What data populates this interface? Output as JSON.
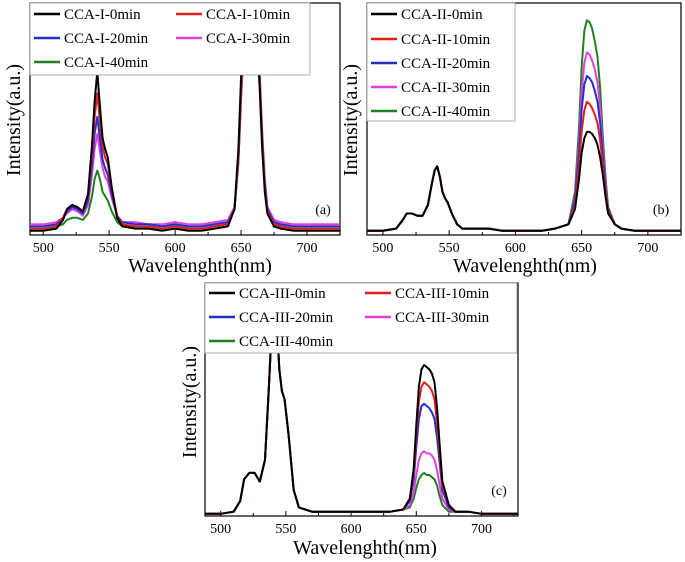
{
  "chart_data": [
    {
      "type": "line",
      "panel": "(a)",
      "xlabel": "Wavelenghth(nm)",
      "ylabel": "Intensity(a.u.)",
      "xlim": [
        490,
        725
      ],
      "ylim": [
        0,
        1.08
      ],
      "xticks": [
        500,
        550,
        600,
        650,
        700
      ],
      "x": [
        490,
        500,
        510,
        515,
        518,
        522,
        526,
        530,
        534,
        537,
        539,
        541,
        543,
        545,
        547,
        549,
        552,
        556,
        560,
        570,
        580,
        590,
        600,
        610,
        620,
        630,
        640,
        645,
        648,
        650,
        652,
        654,
        656,
        658,
        660,
        662,
        664,
        666,
        668,
        670,
        675,
        680,
        690,
        700,
        710,
        725
      ],
      "series": [
        {
          "name": "CCA-I-0min",
          "color": "#000000",
          "values": [
            0.02,
            0.02,
            0.03,
            0.07,
            0.12,
            0.14,
            0.13,
            0.11,
            0.19,
            0.42,
            0.62,
            0.76,
            0.6,
            0.45,
            0.4,
            0.36,
            0.22,
            0.08,
            0.04,
            0.03,
            0.03,
            0.02,
            0.03,
            0.02,
            0.02,
            0.03,
            0.04,
            0.12,
            0.4,
            0.74,
            0.96,
            1.0,
            0.98,
            0.96,
            0.94,
            0.9,
            0.7,
            0.4,
            0.2,
            0.1,
            0.04,
            0.03,
            0.02,
            0.02,
            0.02,
            0.02
          ]
        },
        {
          "name": "CCA-I-10min",
          "color": "#e02020",
          "values": [
            0.03,
            0.03,
            0.04,
            0.08,
            0.12,
            0.14,
            0.13,
            0.11,
            0.18,
            0.38,
            0.55,
            0.66,
            0.53,
            0.41,
            0.36,
            0.33,
            0.21,
            0.09,
            0.05,
            0.04,
            0.04,
            0.03,
            0.04,
            0.03,
            0.03,
            0.04,
            0.05,
            0.12,
            0.36,
            0.68,
            0.9,
            0.97,
            0.98,
            0.97,
            0.95,
            0.92,
            0.74,
            0.44,
            0.22,
            0.11,
            0.05,
            0.04,
            0.03,
            0.03,
            0.03,
            0.03
          ]
        },
        {
          "name": "CCA-I-20min",
          "color": "#2030d0",
          "values": [
            0.04,
            0.04,
            0.05,
            0.08,
            0.11,
            0.13,
            0.12,
            0.1,
            0.16,
            0.33,
            0.47,
            0.55,
            0.45,
            0.35,
            0.31,
            0.28,
            0.19,
            0.09,
            0.06,
            0.05,
            0.05,
            0.04,
            0.05,
            0.04,
            0.04,
            0.05,
            0.06,
            0.12,
            0.35,
            0.66,
            0.9,
            0.98,
            0.97,
            0.96,
            0.95,
            0.93,
            0.76,
            0.46,
            0.24,
            0.12,
            0.06,
            0.05,
            0.04,
            0.04,
            0.04,
            0.04
          ]
        },
        {
          "name": "CCA-I-30min",
          "color": "#e040e0",
          "values": [
            0.05,
            0.05,
            0.06,
            0.08,
            0.1,
            0.12,
            0.11,
            0.09,
            0.14,
            0.28,
            0.4,
            0.47,
            0.39,
            0.31,
            0.27,
            0.25,
            0.17,
            0.09,
            0.06,
            0.06,
            0.05,
            0.05,
            0.06,
            0.05,
            0.05,
            0.06,
            0.07,
            0.13,
            0.34,
            0.64,
            0.88,
            0.96,
            0.96,
            0.95,
            0.94,
            0.92,
            0.77,
            0.48,
            0.26,
            0.13,
            0.07,
            0.06,
            0.05,
            0.05,
            0.05,
            0.05
          ]
        },
        {
          "name": "CCA-I-40min",
          "color": "#208020",
          "values": [
            0.03,
            0.03,
            0.04,
            0.05,
            0.07,
            0.08,
            0.08,
            0.07,
            0.1,
            0.18,
            0.26,
            0.3,
            0.26,
            0.2,
            0.18,
            0.16,
            0.11,
            0.06,
            0.04,
            0.04,
            0.04,
            0.03,
            0.04,
            0.03,
            0.03,
            0.04,
            0.05,
            0.12,
            0.34,
            0.64,
            0.88,
            0.97,
            0.99,
            0.97,
            0.95,
            0.92,
            0.76,
            0.46,
            0.24,
            0.12,
            0.05,
            0.04,
            0.03,
            0.03,
            0.03,
            0.03
          ]
        }
      ]
    },
    {
      "type": "line",
      "panel": "(b)",
      "xlabel": "Wavelenghth(nm)",
      "ylabel": "Intensity(a.u.)",
      "xlim": [
        488,
        725
      ],
      "ylim": [
        0,
        1.08
      ],
      "xticks": [
        500,
        550,
        600,
        650,
        700
      ],
      "x": [
        488,
        500,
        510,
        515,
        518,
        522,
        526,
        530,
        534,
        537,
        539,
        541,
        543,
        545,
        547,
        549,
        552,
        556,
        560,
        570,
        580,
        590,
        600,
        610,
        620,
        630,
        640,
        645,
        648,
        650,
        652,
        654,
        656,
        658,
        660,
        662,
        664,
        666,
        668,
        670,
        675,
        680,
        690,
        700,
        710,
        725
      ],
      "series": [
        {
          "name": "CCA-II-0min",
          "color": "#000000",
          "values": [
            0.02,
            0.02,
            0.03,
            0.07,
            0.1,
            0.1,
            0.09,
            0.09,
            0.14,
            0.24,
            0.3,
            0.32,
            0.27,
            0.2,
            0.17,
            0.15,
            0.1,
            0.05,
            0.03,
            0.03,
            0.03,
            0.02,
            0.02,
            0.02,
            0.02,
            0.03,
            0.05,
            0.12,
            0.26,
            0.38,
            0.45,
            0.48,
            0.48,
            0.47,
            0.45,
            0.42,
            0.36,
            0.28,
            0.18,
            0.1,
            0.05,
            0.03,
            0.02,
            0.02,
            0.02,
            0.02
          ]
        },
        {
          "name": "CCA-II-10min",
          "color": "#e02020",
          "values": [
            0.02,
            0.02,
            0.03,
            0.07,
            0.1,
            0.1,
            0.09,
            0.09,
            0.14,
            0.24,
            0.3,
            0.32,
            0.27,
            0.2,
            0.17,
            0.15,
            0.1,
            0.05,
            0.03,
            0.03,
            0.03,
            0.02,
            0.02,
            0.02,
            0.02,
            0.03,
            0.05,
            0.14,
            0.32,
            0.48,
            0.58,
            0.62,
            0.61,
            0.59,
            0.56,
            0.52,
            0.44,
            0.32,
            0.2,
            0.11,
            0.05,
            0.03,
            0.02,
            0.02,
            0.02,
            0.02
          ]
        },
        {
          "name": "CCA-II-20min",
          "color": "#2030d0",
          "values": [
            0.02,
            0.02,
            0.03,
            0.07,
            0.1,
            0.1,
            0.09,
            0.09,
            0.14,
            0.24,
            0.3,
            0.32,
            0.27,
            0.2,
            0.17,
            0.15,
            0.1,
            0.05,
            0.03,
            0.03,
            0.03,
            0.02,
            0.02,
            0.02,
            0.02,
            0.03,
            0.05,
            0.16,
            0.38,
            0.58,
            0.7,
            0.74,
            0.73,
            0.71,
            0.67,
            0.62,
            0.52,
            0.37,
            0.22,
            0.12,
            0.05,
            0.03,
            0.02,
            0.02,
            0.02,
            0.02
          ]
        },
        {
          "name": "CCA-II-30min",
          "color": "#e040e0",
          "values": [
            0.02,
            0.02,
            0.03,
            0.07,
            0.1,
            0.1,
            0.09,
            0.09,
            0.14,
            0.24,
            0.3,
            0.32,
            0.27,
            0.2,
            0.17,
            0.15,
            0.1,
            0.05,
            0.03,
            0.03,
            0.03,
            0.02,
            0.02,
            0.02,
            0.02,
            0.03,
            0.05,
            0.17,
            0.42,
            0.66,
            0.8,
            0.85,
            0.84,
            0.81,
            0.77,
            0.71,
            0.59,
            0.41,
            0.24,
            0.12,
            0.05,
            0.03,
            0.02,
            0.02,
            0.02,
            0.02
          ]
        },
        {
          "name": "CCA-II-40min",
          "color": "#208020",
          "values": [
            0.02,
            0.02,
            0.03,
            0.07,
            0.1,
            0.1,
            0.09,
            0.09,
            0.14,
            0.24,
            0.3,
            0.32,
            0.27,
            0.2,
            0.17,
            0.15,
            0.1,
            0.05,
            0.03,
            0.03,
            0.03,
            0.02,
            0.02,
            0.02,
            0.02,
            0.03,
            0.05,
            0.2,
            0.5,
            0.78,
            0.95,
            1.0,
            0.99,
            0.96,
            0.9,
            0.83,
            0.68,
            0.46,
            0.27,
            0.13,
            0.05,
            0.03,
            0.02,
            0.02,
            0.02,
            0.02
          ]
        }
      ]
    },
    {
      "type": "line",
      "panel": "(c)",
      "xlabel": "Wavelenghth(nm)",
      "ylabel": "Intensity(a.u.)",
      "xlim": [
        488,
        728
      ],
      "ylim": [
        0,
        1.08
      ],
      "xticks": [
        500,
        550,
        600,
        650,
        700
      ],
      "x": [
        488,
        500,
        510,
        515,
        518,
        522,
        526,
        530,
        534,
        537,
        539,
        541,
        543,
        545,
        547,
        549,
        552,
        556,
        560,
        570,
        580,
        590,
        600,
        610,
        620,
        630,
        640,
        645,
        648,
        650,
        652,
        654,
        656,
        658,
        660,
        662,
        664,
        666,
        668,
        670,
        675,
        680,
        690,
        700,
        710,
        728
      ],
      "series": [
        {
          "name": "CCA-III-0min",
          "color": "#000000",
          "values": [
            0.01,
            0.01,
            0.02,
            0.07,
            0.17,
            0.2,
            0.2,
            0.16,
            0.26,
            0.6,
            0.85,
            1.0,
            0.92,
            0.68,
            0.58,
            0.54,
            0.38,
            0.12,
            0.04,
            0.02,
            0.02,
            0.02,
            0.02,
            0.02,
            0.02,
            0.02,
            0.03,
            0.08,
            0.22,
            0.42,
            0.6,
            0.68,
            0.7,
            0.69,
            0.68,
            0.66,
            0.62,
            0.5,
            0.32,
            0.16,
            0.05,
            0.02,
            0.02,
            0.01,
            0.01,
            0.01
          ]
        },
        {
          "name": "CCA-III-10min",
          "color": "#e02020",
          "values": [
            0.01,
            0.01,
            0.02,
            0.07,
            0.17,
            0.2,
            0.2,
            0.16,
            0.26,
            0.6,
            0.85,
            0.99,
            0.91,
            0.68,
            0.58,
            0.54,
            0.38,
            0.12,
            0.04,
            0.02,
            0.02,
            0.02,
            0.02,
            0.02,
            0.02,
            0.02,
            0.03,
            0.08,
            0.2,
            0.38,
            0.53,
            0.6,
            0.62,
            0.61,
            0.6,
            0.58,
            0.54,
            0.43,
            0.28,
            0.14,
            0.05,
            0.02,
            0.02,
            0.01,
            0.01,
            0.01
          ]
        },
        {
          "name": "CCA-III-20min",
          "color": "#2030d0",
          "values": [
            0.01,
            0.01,
            0.02,
            0.07,
            0.17,
            0.2,
            0.2,
            0.16,
            0.26,
            0.6,
            0.85,
            0.99,
            0.91,
            0.68,
            0.58,
            0.54,
            0.38,
            0.12,
            0.04,
            0.02,
            0.02,
            0.02,
            0.02,
            0.02,
            0.02,
            0.02,
            0.03,
            0.07,
            0.17,
            0.32,
            0.45,
            0.51,
            0.52,
            0.51,
            0.5,
            0.48,
            0.45,
            0.36,
            0.24,
            0.12,
            0.04,
            0.02,
            0.02,
            0.01,
            0.01,
            0.01
          ]
        },
        {
          "name": "CCA-III-30min",
          "color": "#e040e0",
          "values": [
            0.01,
            0.01,
            0.02,
            0.07,
            0.17,
            0.2,
            0.2,
            0.16,
            0.26,
            0.6,
            0.85,
            0.99,
            0.91,
            0.68,
            0.58,
            0.54,
            0.38,
            0.12,
            0.04,
            0.02,
            0.02,
            0.02,
            0.02,
            0.02,
            0.02,
            0.02,
            0.03,
            0.05,
            0.11,
            0.19,
            0.26,
            0.29,
            0.3,
            0.29,
            0.29,
            0.28,
            0.26,
            0.21,
            0.14,
            0.08,
            0.03,
            0.02,
            0.02,
            0.01,
            0.01,
            0.01
          ]
        },
        {
          "name": "CCA-III-40min",
          "color": "#208020",
          "values": [
            0.01,
            0.01,
            0.02,
            0.07,
            0.17,
            0.2,
            0.2,
            0.16,
            0.26,
            0.6,
            0.85,
            0.99,
            0.91,
            0.68,
            0.58,
            0.54,
            0.38,
            0.12,
            0.04,
            0.02,
            0.02,
            0.02,
            0.02,
            0.02,
            0.02,
            0.02,
            0.03,
            0.04,
            0.08,
            0.13,
            0.17,
            0.19,
            0.2,
            0.19,
            0.19,
            0.18,
            0.17,
            0.14,
            0.09,
            0.05,
            0.02,
            0.02,
            0.02,
            0.01,
            0.01,
            0.01
          ]
        }
      ]
    }
  ]
}
